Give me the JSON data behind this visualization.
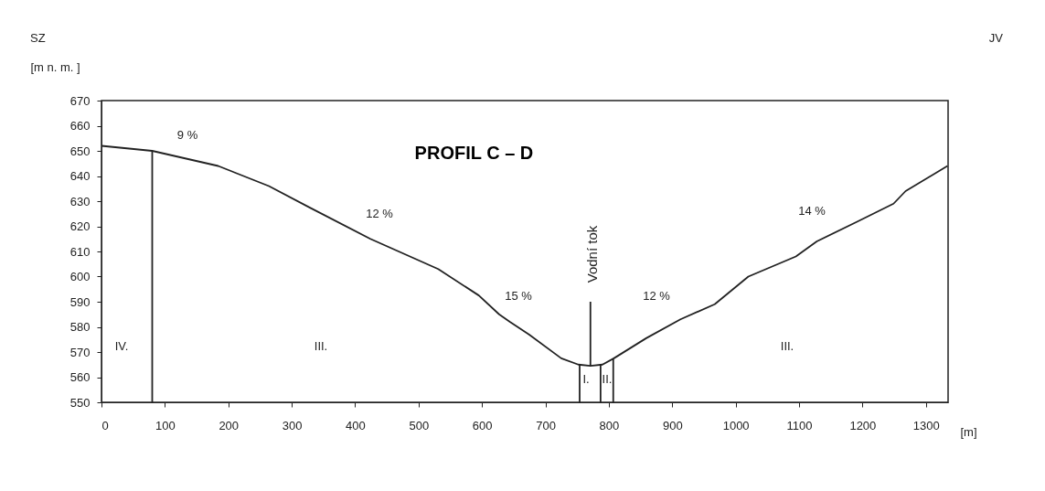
{
  "chart_data": {
    "type": "line",
    "title": "PROFIL  C – D",
    "xlabel": "[m]",
    "ylabel": "[m n. m. ]",
    "xlim": [
      0,
      1335
    ],
    "ylim": [
      550,
      670
    ],
    "xticks": [
      0,
      100,
      200,
      300,
      400,
      500,
      600,
      700,
      800,
      900,
      1000,
      1100,
      1200,
      1300
    ],
    "yticks": [
      550,
      560,
      570,
      580,
      590,
      600,
      610,
      620,
      630,
      640,
      650,
      660,
      670
    ],
    "grid": false,
    "marker": "none",
    "line_style": "solid",
    "series": [
      {
        "color": "#222222",
        "x": [
          0,
          80,
          184,
          264,
          328,
          424,
          531,
          595,
          627,
          644,
          674,
          725,
          752,
          771,
          790,
          808,
          859,
          913,
          967,
          1020,
          1095,
          1128,
          1193,
          1249,
          1268,
          1334
        ],
        "values": [
          652,
          650,
          644,
          636,
          627.5,
          615,
          603,
          592.5,
          585,
          582,
          577,
          567.5,
          565,
          564.5,
          565,
          567.5,
          575.5,
          583,
          589,
          600,
          608,
          614,
          622,
          629,
          634,
          644
        ]
      },
      {
        "color": "#222222",
        "x": [
          80,
          80
        ],
        "values": [
          550,
          650
        ]
      },
      {
        "color": "#222222",
        "x": [
          754,
          754
        ],
        "values": [
          550,
          565
        ]
      },
      {
        "color": "#222222",
        "x": [
          771,
          771
        ],
        "values": [
          564.5,
          590
        ]
      },
      {
        "color": "#222222",
        "x": [
          787,
          787
        ],
        "values": [
          550,
          565
        ]
      },
      {
        "color": "#222222",
        "x": [
          807,
          807
        ],
        "values": [
          550,
          567.5
        ]
      }
    ],
    "annotations": [
      "SZ",
      "JV",
      "9 %",
      "12 %",
      "15 %",
      "12 %",
      "14 %",
      "IV.",
      "III.",
      "I.",
      "II.",
      "III.",
      "Vodní tok"
    ]
  }
}
